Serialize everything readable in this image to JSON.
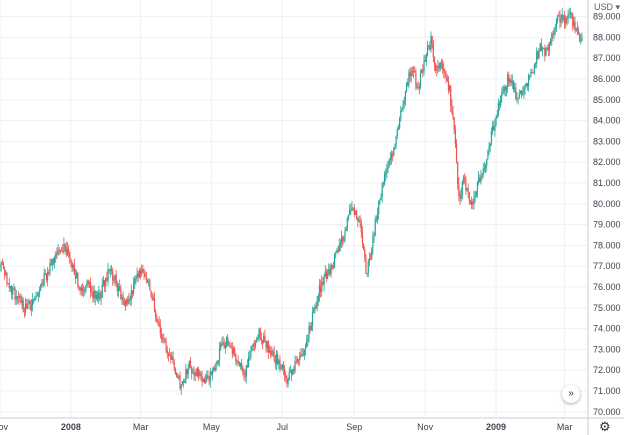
{
  "currency_selector": {
    "label": "USD",
    "arrow": "chevron-down-icon"
  },
  "scroll_button": {
    "glyph": "»",
    "icon": "double-chevron-right-icon"
  },
  "settings": {
    "glyph": "⚙",
    "icon": "gear-icon"
  },
  "colors": {
    "up": "#26a69a",
    "down": "#ef5350",
    "grid": "#eef0f3",
    "text": "#3d4450"
  },
  "chart_data": {
    "type": "candlestick",
    "title": "",
    "xlabel": "",
    "ylabel": "",
    "grid": true,
    "y_axis_side": "right",
    "ylim": [
      69.7,
      89.8
    ],
    "y_ticks": [
      {
        "value": 70,
        "label": "70.000"
      },
      {
        "value": 71,
        "label": "71.000"
      },
      {
        "value": 72,
        "label": "72.000"
      },
      {
        "value": 73,
        "label": "73.000"
      },
      {
        "value": 74,
        "label": "74.000"
      },
      {
        "value": 75,
        "label": "75.000"
      },
      {
        "value": 76,
        "label": "76.000"
      },
      {
        "value": 77,
        "label": "77.000"
      },
      {
        "value": 78,
        "label": "78.000"
      },
      {
        "value": 79,
        "label": "79.000"
      },
      {
        "value": 80,
        "label": "80.000"
      },
      {
        "value": 81,
        "label": "81.000"
      },
      {
        "value": 82,
        "label": "82.000"
      },
      {
        "value": 83,
        "label": "83.000"
      },
      {
        "value": 84,
        "label": "84.000"
      },
      {
        "value": 85,
        "label": "85.000"
      },
      {
        "value": 86,
        "label": "86.000"
      },
      {
        "value": 87,
        "label": "87.000"
      },
      {
        "value": 88,
        "label": "88.000"
      },
      {
        "value": 89,
        "label": "89.000"
      }
    ],
    "xlim": [
      "2007-11-01",
      "2009-03-16"
    ],
    "x_ticks": [
      {
        "date": "2007-11-01",
        "label": "Nov",
        "bold": false
      },
      {
        "date": "2008-01-01",
        "label": "2008",
        "bold": true
      },
      {
        "date": "2008-03-01",
        "label": "Mar",
        "bold": false
      },
      {
        "date": "2008-05-01",
        "label": "May",
        "bold": false
      },
      {
        "date": "2008-07-01",
        "label": "Jul",
        "bold": false
      },
      {
        "date": "2008-09-01",
        "label": "Sep",
        "bold": false
      },
      {
        "date": "2008-11-01",
        "label": "Nov",
        "bold": false
      },
      {
        "date": "2009-01-01",
        "label": "2009",
        "bold": true
      },
      {
        "date": "2009-03-01",
        "label": "Mar",
        "bold": false
      }
    ],
    "series": [
      {
        "path": [
          [
            "2007-11-01",
            77.0
          ],
          [
            "2007-11-04",
            76.8
          ],
          [
            "2007-11-08",
            76.2
          ],
          [
            "2007-11-12",
            75.8
          ],
          [
            "2007-11-16",
            75.5
          ],
          [
            "2007-11-20",
            75.1
          ],
          [
            "2007-11-24",
            74.9
          ],
          [
            "2007-11-28",
            75.2
          ],
          [
            "2007-12-02",
            75.6
          ],
          [
            "2007-12-06",
            76.2
          ],
          [
            "2007-12-10",
            76.5
          ],
          [
            "2007-12-14",
            76.9
          ],
          [
            "2007-12-18",
            77.4
          ],
          [
            "2007-12-22",
            77.6
          ],
          [
            "2007-12-26",
            77.8
          ],
          [
            "2007-12-30",
            77.5
          ],
          [
            "2008-01-03",
            77.0
          ],
          [
            "2008-01-07",
            76.3
          ],
          [
            "2008-01-11",
            75.9
          ],
          [
            "2008-01-15",
            76.2
          ],
          [
            "2008-01-19",
            75.8
          ],
          [
            "2008-01-23",
            75.5
          ],
          [
            "2008-01-27",
            75.7
          ],
          [
            "2008-01-31",
            76.4
          ],
          [
            "2008-02-04",
            76.8
          ],
          [
            "2008-02-08",
            76.3
          ],
          [
            "2008-02-12",
            75.6
          ],
          [
            "2008-02-16",
            75.2
          ],
          [
            "2008-02-20",
            75.4
          ],
          [
            "2008-02-24",
            76.1
          ],
          [
            "2008-02-28",
            76.6
          ],
          [
            "2008-03-03",
            76.8
          ],
          [
            "2008-03-07",
            76.3
          ],
          [
            "2008-03-11",
            75.5
          ],
          [
            "2008-03-15",
            74.5
          ],
          [
            "2008-03-19",
            73.6
          ],
          [
            "2008-03-23",
            73.1
          ],
          [
            "2008-03-27",
            72.6
          ],
          [
            "2008-03-31",
            72.1
          ],
          [
            "2008-04-04",
            71.3
          ],
          [
            "2008-04-08",
            71.7
          ],
          [
            "2008-04-12",
            72.2
          ],
          [
            "2008-04-16",
            71.9
          ],
          [
            "2008-04-20",
            71.8
          ],
          [
            "2008-04-24",
            71.4
          ],
          [
            "2008-04-28",
            71.6
          ],
          [
            "2008-05-02",
            71.9
          ],
          [
            "2008-05-06",
            72.5
          ],
          [
            "2008-05-10",
            73.2
          ],
          [
            "2008-05-14",
            73.4
          ],
          [
            "2008-05-18",
            73.0
          ],
          [
            "2008-05-22",
            72.6
          ],
          [
            "2008-05-26",
            72.2
          ],
          [
            "2008-05-30",
            71.9
          ],
          [
            "2008-06-03",
            72.5
          ],
          [
            "2008-06-07",
            73.3
          ],
          [
            "2008-06-11",
            73.8
          ],
          [
            "2008-06-15",
            73.5
          ],
          [
            "2008-06-19",
            73.0
          ],
          [
            "2008-06-23",
            72.6
          ],
          [
            "2008-06-27",
            72.5
          ],
          [
            "2008-07-01",
            72.1
          ],
          [
            "2008-07-05",
            71.6
          ],
          [
            "2008-07-09",
            71.9
          ],
          [
            "2008-07-13",
            72.4
          ],
          [
            "2008-07-17",
            72.7
          ],
          [
            "2008-07-21",
            73.1
          ],
          [
            "2008-07-25",
            74.2
          ],
          [
            "2008-07-29",
            75.0
          ],
          [
            "2008-08-02",
            75.8
          ],
          [
            "2008-08-06",
            76.4
          ],
          [
            "2008-08-10",
            76.8
          ],
          [
            "2008-08-14",
            77.2
          ],
          [
            "2008-08-18",
            77.9
          ],
          [
            "2008-08-22",
            78.4
          ],
          [
            "2008-08-26",
            79.2
          ],
          [
            "2008-08-30",
            79.8
          ],
          [
            "2008-09-03",
            79.4
          ],
          [
            "2008-09-07",
            78.6
          ],
          [
            "2008-09-11",
            76.7
          ],
          [
            "2008-09-15",
            77.5
          ],
          [
            "2008-09-19",
            79.0
          ],
          [
            "2008-09-23",
            80.3
          ],
          [
            "2008-09-27",
            81.2
          ],
          [
            "2008-10-01",
            82.1
          ],
          [
            "2008-10-05",
            82.6
          ],
          [
            "2008-10-09",
            83.8
          ],
          [
            "2008-10-13",
            84.9
          ],
          [
            "2008-10-17",
            85.9
          ],
          [
            "2008-10-21",
            86.6
          ],
          [
            "2008-10-25",
            85.6
          ],
          [
            "2008-10-29",
            86.2
          ],
          [
            "2008-11-02",
            87.3
          ],
          [
            "2008-11-06",
            87.8
          ],
          [
            "2008-11-10",
            86.4
          ],
          [
            "2008-11-14",
            86.9
          ],
          [
            "2008-11-18",
            86.2
          ],
          [
            "2008-11-22",
            85.4
          ],
          [
            "2008-11-26",
            83.6
          ],
          [
            "2008-11-30",
            80.2
          ],
          [
            "2008-12-04",
            81.1
          ],
          [
            "2008-12-08",
            80.5
          ],
          [
            "2008-12-12",
            79.9
          ],
          [
            "2008-12-16",
            80.8
          ],
          [
            "2008-12-20",
            81.6
          ],
          [
            "2008-12-24",
            82.1
          ],
          [
            "2008-12-28",
            83.3
          ],
          [
            "2008-12-31",
            84.0
          ],
          [
            "2009-01-04",
            84.8
          ],
          [
            "2009-01-08",
            85.6
          ],
          [
            "2009-01-12",
            86.1
          ],
          [
            "2009-01-16",
            85.5
          ],
          [
            "2009-01-20",
            85.1
          ],
          [
            "2009-01-24",
            85.4
          ],
          [
            "2009-01-28",
            85.9
          ],
          [
            "2009-02-01",
            86.4
          ],
          [
            "2009-02-05",
            87.1
          ],
          [
            "2009-02-09",
            87.6
          ],
          [
            "2009-02-13",
            87.3
          ],
          [
            "2009-02-17",
            87.9
          ],
          [
            "2009-02-21",
            88.6
          ],
          [
            "2009-02-25",
            89.0
          ],
          [
            "2009-03-01",
            88.8
          ],
          [
            "2009-03-05",
            89.1
          ],
          [
            "2009-03-09",
            88.7
          ],
          [
            "2009-03-13",
            88.2
          ],
          [
            "2009-03-16",
            87.8
          ]
        ],
        "points_per_segment": 3,
        "volatility": 0.55,
        "candle_spacing_days": 1
      }
    ]
  }
}
